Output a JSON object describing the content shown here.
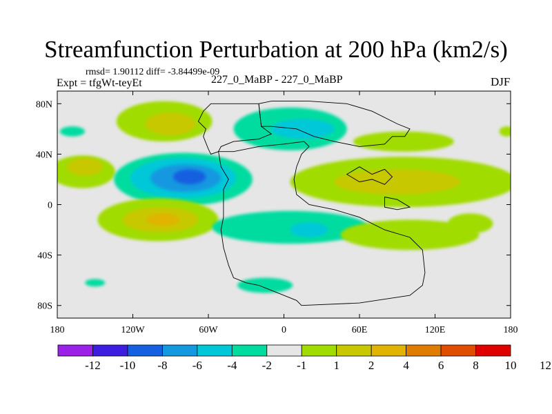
{
  "chart_data": {
    "type": "heatmap",
    "title": "Streamfunction Perturbation at 200 hPa (km2/s)",
    "stats_text": "rmsd= 1.90112 diff= -3.84499e-09",
    "left_label": "Expt = tfgWt-teyEt",
    "center_label": "227_0_MaBP - 227_0_MaBP",
    "right_label": "DJF",
    "x_range": [
      -180,
      180
    ],
    "y_range": [
      -90,
      90
    ],
    "x_ticks": [
      {
        "value": -180,
        "label": "180"
      },
      {
        "value": -120,
        "label": "120W"
      },
      {
        "value": -60,
        "label": "60W"
      },
      {
        "value": 0,
        "label": "0"
      },
      {
        "value": 60,
        "label": "60E"
      },
      {
        "value": 120,
        "label": "120E"
      },
      {
        "value": 180,
        "label": "180"
      }
    ],
    "y_ticks": [
      {
        "value": 80,
        "label": "80N"
      },
      {
        "value": 40,
        "label": "40N"
      },
      {
        "value": 0,
        "label": "0"
      },
      {
        "value": -40,
        "label": "40S"
      },
      {
        "value": -80,
        "label": "80S"
      }
    ],
    "colorbar": {
      "colors": [
        "#9b20e8",
        "#3d1ee0",
        "#1460e0",
        "#1498e0",
        "#00c8d8",
        "#00dca0",
        "#e6e6e6",
        "#a0dc00",
        "#c8c800",
        "#e0b400",
        "#e07d00",
        "#e04c00",
        "#e00000"
      ],
      "labels": [
        "-12",
        "-10",
        "-8",
        "-6",
        "-4",
        "-2",
        "-1",
        "1",
        "2",
        "4",
        "6",
        "8",
        "10",
        "12"
      ]
    },
    "anomalies": [
      {
        "lon": -160,
        "lat": 26,
        "rlon": 26,
        "rlat": 13,
        "level": "2"
      },
      {
        "lon": -158,
        "lat": 30,
        "rlon": 14,
        "rlat": 7,
        "level": "4"
      },
      {
        "lon": -95,
        "lat": 66,
        "rlon": 38,
        "rlat": 16,
        "level": "2"
      },
      {
        "lon": -90,
        "lat": 64,
        "rlon": 20,
        "rlat": 9,
        "level": "4"
      },
      {
        "lon": -168,
        "lat": 58,
        "rlon": 10,
        "rlat": 4,
        "level": "-2"
      },
      {
        "lon": -80,
        "lat": 20,
        "rlon": 55,
        "rlat": 21,
        "level": "-2"
      },
      {
        "lon": -80,
        "lat": 21,
        "rlon": 42,
        "rlat": 16,
        "level": "-4"
      },
      {
        "lon": -78,
        "lat": 21,
        "rlon": 28,
        "rlat": 11,
        "level": "-6"
      },
      {
        "lon": -75,
        "lat": 22,
        "rlon": 13,
        "rlat": 6,
        "level": "-8"
      },
      {
        "lon": -100,
        "lat": -12,
        "rlon": 48,
        "rlat": 17,
        "level": "2"
      },
      {
        "lon": -98,
        "lat": -12,
        "rlon": 30,
        "rlat": 10,
        "level": "4"
      },
      {
        "lon": -96,
        "lat": -12,
        "rlon": 13,
        "rlat": 5,
        "level": "6"
      },
      {
        "lon": 5,
        "lat": 60,
        "rlon": 45,
        "rlat": 17,
        "level": "-2"
      },
      {
        "lon": 15,
        "lat": 60,
        "rlon": 25,
        "rlat": 8,
        "level": "-4"
      },
      {
        "lon": 95,
        "lat": 18,
        "rlon": 90,
        "rlat": 20,
        "level": "2"
      },
      {
        "lon": 90,
        "lat": 18,
        "rlon": 50,
        "rlat": 10,
        "level": "4"
      },
      {
        "lon": 95,
        "lat": 50,
        "rlon": 40,
        "rlat": 8,
        "level": "2"
      },
      {
        "lon": 5,
        "lat": -18,
        "rlon": 62,
        "rlat": 13,
        "level": "-2"
      },
      {
        "lon": 20,
        "lat": -20,
        "rlon": 15,
        "rlat": 6,
        "level": "-4"
      },
      {
        "lon": 100,
        "lat": -24,
        "rlon": 55,
        "rlat": 12,
        "level": "2"
      },
      {
        "lon": 148,
        "lat": -15,
        "rlon": 18,
        "rlat": 8,
        "level": "2"
      },
      {
        "lon": -15,
        "lat": -64,
        "rlon": 22,
        "rlat": 6,
        "level": "-2"
      },
      {
        "lon": -150,
        "lat": -62,
        "rlon": 8,
        "rlat": 3,
        "level": "-2"
      },
      {
        "lon": 177,
        "lat": 58,
        "rlon": 6,
        "rlat": 4,
        "level": "2"
      }
    ],
    "continents": [
      [
        [
          -58,
          80
        ],
        [
          -20,
          80
        ],
        [
          -18,
          62
        ],
        [
          -10,
          56
        ],
        [
          -20,
          52
        ],
        [
          -40,
          50
        ],
        [
          -50,
          46
        ],
        [
          -52,
          42
        ],
        [
          -58,
          40
        ],
        [
          -60,
          44
        ],
        [
          -64,
          54
        ],
        [
          -62,
          60
        ],
        [
          -68,
          66
        ],
        [
          -64,
          74
        ],
        [
          -58,
          80
        ]
      ],
      [
        [
          -20,
          80
        ],
        [
          -10,
          82
        ],
        [
          20,
          82
        ],
        [
          50,
          80
        ],
        [
          70,
          74
        ],
        [
          90,
          64
        ],
        [
          100,
          60
        ],
        [
          96,
          54
        ],
        [
          86,
          54
        ],
        [
          80,
          48
        ],
        [
          60,
          46
        ],
        [
          40,
          50
        ],
        [
          24,
          54
        ],
        [
          10,
          60
        ],
        [
          -10,
          62
        ],
        [
          -18,
          62
        ],
        [
          -20,
          80
        ]
      ],
      [
        [
          -52,
          42
        ],
        [
          -50,
          30
        ],
        [
          -44,
          20
        ],
        [
          -48,
          12
        ],
        [
          -48,
          4
        ],
        [
          -48,
          -10
        ],
        [
          -50,
          -20
        ],
        [
          -48,
          -34
        ],
        [
          -44,
          -48
        ],
        [
          -40,
          -58
        ],
        [
          -30,
          -62
        ],
        [
          -20,
          -64
        ],
        [
          -10,
          -68
        ],
        [
          0,
          -72
        ],
        [
          10,
          -76
        ],
        [
          14,
          -80
        ],
        [
          60,
          -78
        ],
        [
          100,
          -72
        ],
        [
          110,
          -64
        ],
        [
          112,
          -54
        ],
        [
          110,
          -36
        ],
        [
          100,
          -26
        ],
        [
          80,
          -20
        ],
        [
          60,
          -10
        ],
        [
          40,
          -4
        ],
        [
          20,
          0
        ],
        [
          10,
          8
        ],
        [
          8,
          20
        ],
        [
          10,
          30
        ],
        [
          14,
          40
        ],
        [
          20,
          46
        ],
        [
          16,
          50
        ],
        [
          0,
          48
        ],
        [
          -20,
          46
        ],
        [
          -40,
          42
        ],
        [
          -52,
          42
        ]
      ],
      [
        [
          80,
          6
        ],
        [
          90,
          4
        ],
        [
          100,
          -2
        ],
        [
          90,
          -4
        ],
        [
          80,
          -2
        ],
        [
          80,
          6
        ]
      ],
      [
        [
          50,
          24
        ],
        [
          60,
          30
        ],
        [
          70,
          24
        ],
        [
          80,
          28
        ],
        [
          86,
          22
        ],
        [
          80,
          16
        ],
        [
          70,
          20
        ],
        [
          60,
          18
        ],
        [
          50,
          24
        ]
      ]
    ]
  }
}
